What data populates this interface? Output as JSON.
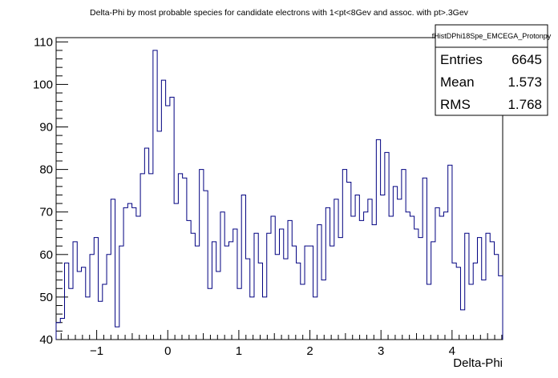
{
  "chart_data": {
    "type": "histogram",
    "title": "Delta-Phi by most probable species for candidate electrons with 1<pt<8Gev and assoc. with pt>.3Gev",
    "xlabel": "Delta-Phi",
    "ylabel": "",
    "xlim": [
      -1.5708,
      4.7124
    ],
    "ylim": [
      40,
      111
    ],
    "x_ticks": [
      -1,
      0,
      1,
      2,
      3,
      4
    ],
    "y_ticks": [
      40,
      50,
      60,
      70,
      80,
      90,
      100,
      110
    ],
    "line_color": "#000080",
    "grid": false,
    "stats": {
      "name": "fHistDPhi18Spe_EMCEGA_Protonpy",
      "rows": [
        {
          "label": "Entries",
          "value": "6645"
        },
        {
          "label": "Mean",
          "value": "1.573"
        },
        {
          "label": "RMS",
          "value": "1.768"
        }
      ]
    },
    "values": [
      44,
      45,
      58,
      52,
      63,
      56,
      57,
      50,
      60,
      64,
      49,
      53,
      60,
      73,
      43,
      62,
      71,
      72,
      71,
      69,
      79,
      85,
      79,
      108,
      89,
      101,
      95,
      97,
      72,
      79,
      78,
      68,
      65,
      62,
      80,
      75,
      52,
      63,
      56,
      70,
      62,
      63,
      66,
      52,
      74,
      59,
      50,
      65,
      58,
      50,
      65,
      69,
      60,
      66,
      59,
      68,
      62,
      58,
      53,
      62,
      62,
      50,
      67,
      54,
      71,
      62,
      73,
      64,
      80,
      77,
      69,
      74,
      68,
      70,
      73,
      67,
      87,
      74,
      84,
      69,
      76,
      73,
      80,
      70,
      69,
      66,
      64,
      78,
      53,
      63,
      71,
      69,
      70,
      81,
      58,
      57,
      47,
      65,
      53,
      58,
      64,
      54,
      65,
      63,
      60,
      55
    ]
  }
}
